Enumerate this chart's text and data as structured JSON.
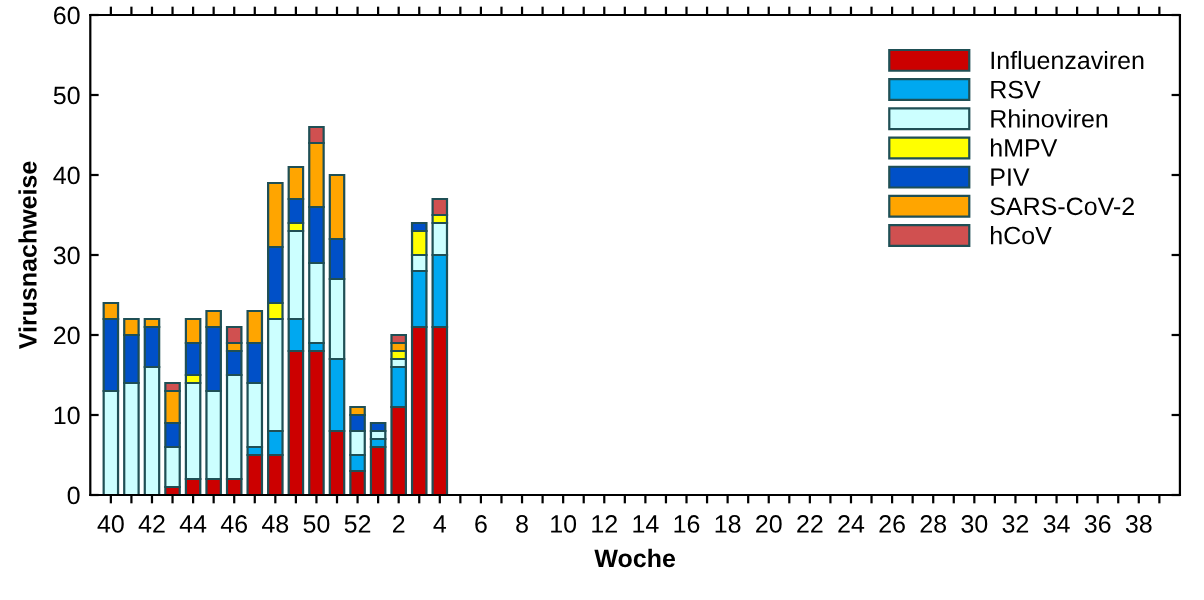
{
  "chart_data": {
    "type": "bar",
    "stacked": true,
    "xlabel": "Woche",
    "ylabel": "Virusnachweise",
    "ylim": [
      0,
      60
    ],
    "yticks": [
      0,
      10,
      20,
      30,
      40,
      50,
      60
    ],
    "grid": false,
    "legend": "top right",
    "categories": [
      "40",
      null,
      "42",
      null,
      "44",
      null,
      "46",
      null,
      "48",
      null,
      "50",
      null,
      "52",
      null,
      "2",
      null,
      "4",
      null,
      "6",
      null,
      "8",
      null,
      "10",
      null,
      "12",
      null,
      "14",
      null,
      "16",
      null,
      "18",
      null,
      "20",
      null,
      "22",
      null,
      "24",
      null,
      "26",
      null,
      "28",
      null,
      "30",
      null,
      "32",
      null,
      "34",
      null,
      "36",
      null,
      "38",
      null
    ],
    "series": [
      {
        "name": "Influenzaviren",
        "color": "#cc0000",
        "values": [
          0,
          0,
          0,
          1,
          2,
          2,
          2,
          5,
          5,
          18,
          18,
          8,
          3,
          6,
          11,
          21,
          21,
          null,
          null,
          null,
          null,
          null,
          null,
          null,
          null,
          null,
          null,
          null,
          null,
          null,
          null,
          null,
          null,
          null,
          null,
          null,
          null,
          null,
          null,
          null,
          null,
          null,
          null,
          null,
          null,
          null,
          null,
          null,
          null,
          null,
          null,
          null
        ]
      },
      {
        "name": "RSV",
        "color": "#00a8f0",
        "values": [
          0,
          0,
          0,
          0,
          0,
          0,
          0,
          1,
          3,
          4,
          1,
          9,
          2,
          1,
          5,
          7,
          9,
          null,
          null,
          null,
          null,
          null,
          null,
          null,
          null,
          null,
          null,
          null,
          null,
          null,
          null,
          null,
          null,
          null,
          null,
          null,
          null,
          null,
          null,
          null,
          null,
          null,
          null,
          null,
          null,
          null,
          null,
          null,
          null,
          null,
          null,
          null
        ]
      },
      {
        "name": "Rhinoviren",
        "color": "#ccffff",
        "values": [
          13,
          14,
          16,
          5,
          12,
          11,
          13,
          8,
          14,
          11,
          10,
          10,
          3,
          1,
          1,
          2,
          4,
          null,
          null,
          null,
          null,
          null,
          null,
          null,
          null,
          null,
          null,
          null,
          null,
          null,
          null,
          null,
          null,
          null,
          null,
          null,
          null,
          null,
          null,
          null,
          null,
          null,
          null,
          null,
          null,
          null,
          null,
          null,
          null,
          null,
          null,
          null
        ]
      },
      {
        "name": "hMPV",
        "color": "#ffff00",
        "values": [
          0,
          0,
          0,
          0,
          1,
          0,
          0,
          0,
          2,
          1,
          0,
          0,
          0,
          0,
          1,
          3,
          1,
          null,
          null,
          null,
          null,
          null,
          null,
          null,
          null,
          null,
          null,
          null,
          null,
          null,
          null,
          null,
          null,
          null,
          null,
          null,
          null,
          null,
          null,
          null,
          null,
          null,
          null,
          null,
          null,
          null,
          null,
          null,
          null,
          null,
          null,
          null
        ]
      },
      {
        "name": "PIV",
        "color": "#0050c8",
        "values": [
          9,
          6,
          5,
          3,
          4,
          8,
          3,
          5,
          7,
          3,
          7,
          5,
          2,
          1,
          0,
          1,
          0,
          null,
          null,
          null,
          null,
          null,
          null,
          null,
          null,
          null,
          null,
          null,
          null,
          null,
          null,
          null,
          null,
          null,
          null,
          null,
          null,
          null,
          null,
          null,
          null,
          null,
          null,
          null,
          null,
          null,
          null,
          null,
          null,
          null,
          null,
          null
        ]
      },
      {
        "name": "SARS-CoV-2",
        "color": "#ffa500",
        "values": [
          2,
          2,
          1,
          4,
          3,
          2,
          1,
          4,
          8,
          4,
          8,
          8,
          1,
          0,
          1,
          0,
          0,
          null,
          null,
          null,
          null,
          null,
          null,
          null,
          null,
          null,
          null,
          null,
          null,
          null,
          null,
          null,
          null,
          null,
          null,
          null,
          null,
          null,
          null,
          null,
          null,
          null,
          null,
          null,
          null,
          null,
          null,
          null,
          null,
          null,
          null,
          null
        ]
      },
      {
        "name": "hCoV",
        "color": "#d05050",
        "values": [
          0,
          0,
          0,
          1,
          0,
          0,
          2,
          0,
          0,
          0,
          2,
          0,
          0,
          0,
          1,
          0,
          2,
          null,
          null,
          null,
          null,
          null,
          null,
          null,
          null,
          null,
          null,
          null,
          null,
          null,
          null,
          null,
          null,
          null,
          null,
          null,
          null,
          null,
          null,
          null,
          null,
          null,
          null,
          null,
          null,
          null,
          null,
          null,
          null,
          null,
          null,
          null
        ]
      }
    ]
  }
}
